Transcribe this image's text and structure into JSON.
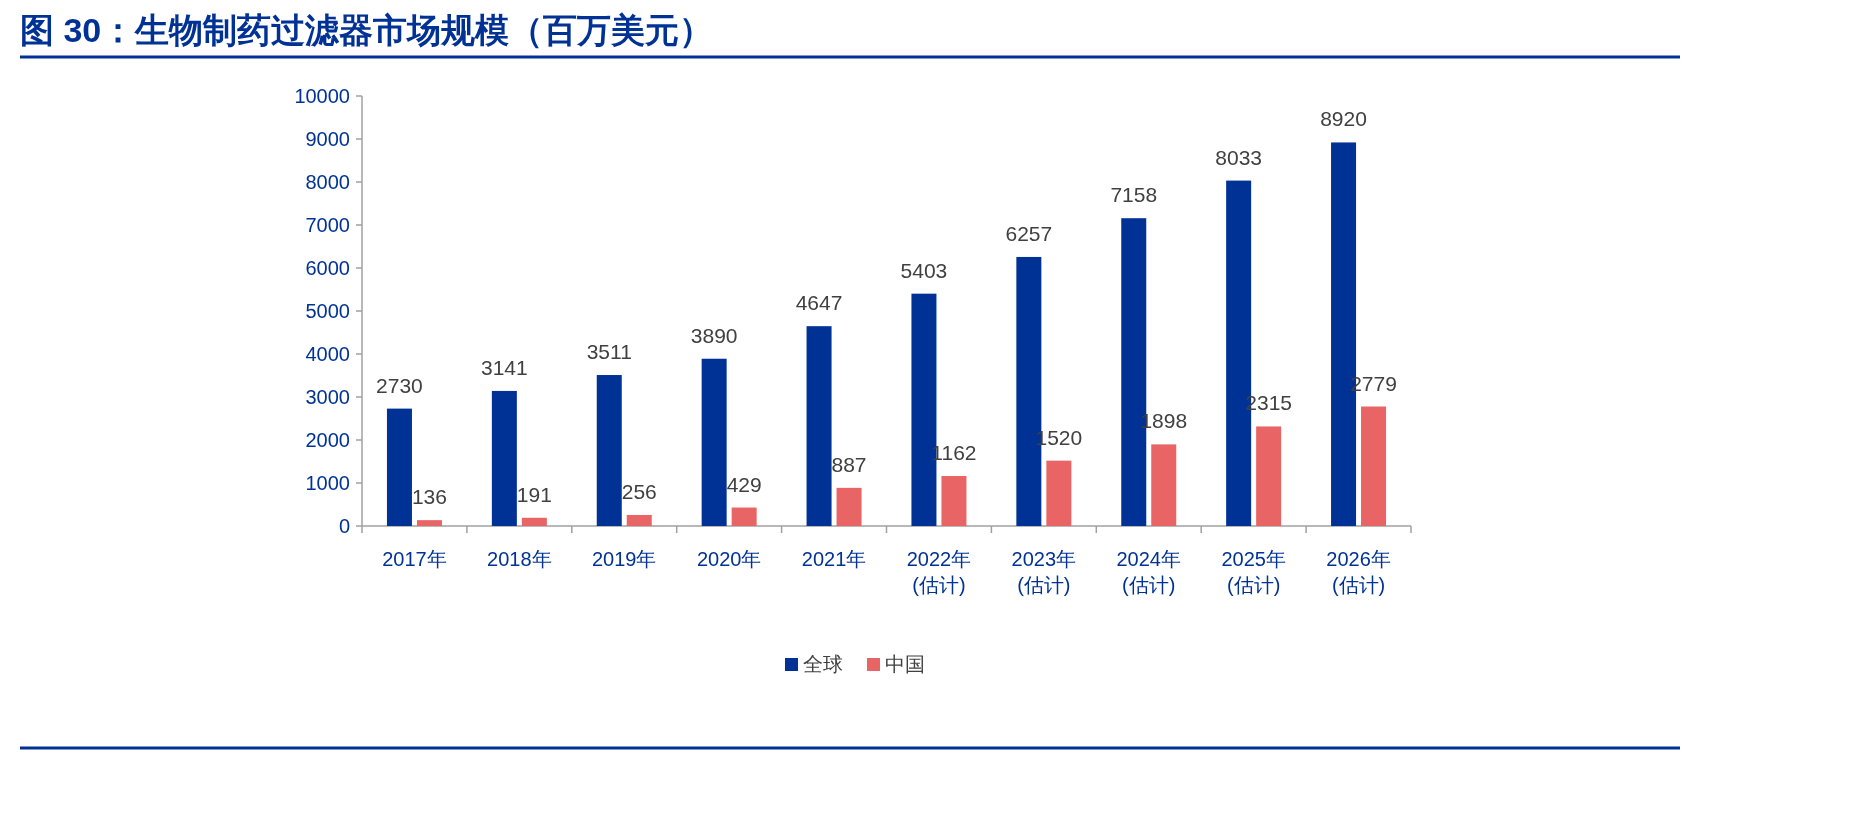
{
  "chart_data": {
    "type": "bar",
    "title": "图 30：生物制药过滤器市场规模（百万美元）",
    "categories": [
      "2017年",
      "2018年",
      "2019年",
      "2020年",
      "2021年",
      "2022年\n(估计)",
      "2023年\n(估计)",
      "2024年\n(估计)",
      "2025年\n(估计)",
      "2026年\n(估计)"
    ],
    "series": [
      {
        "name": "全球",
        "color": "#003296",
        "values": [
          2730,
          3141,
          3511,
          3890,
          4647,
          5403,
          6257,
          7158,
          8033,
          8920
        ]
      },
      {
        "name": "中国",
        "color": "#e96464",
        "values": [
          136,
          191,
          256,
          429,
          887,
          1162,
          1520,
          1898,
          2315,
          2779
        ]
      }
    ],
    "ylim": [
      0,
      10000
    ],
    "yticks": [
      0,
      1000,
      2000,
      3000,
      4000,
      5000,
      6000,
      7000,
      8000,
      9000,
      10000
    ],
    "data_labels": true,
    "legend": "bottom",
    "grid": false
  }
}
